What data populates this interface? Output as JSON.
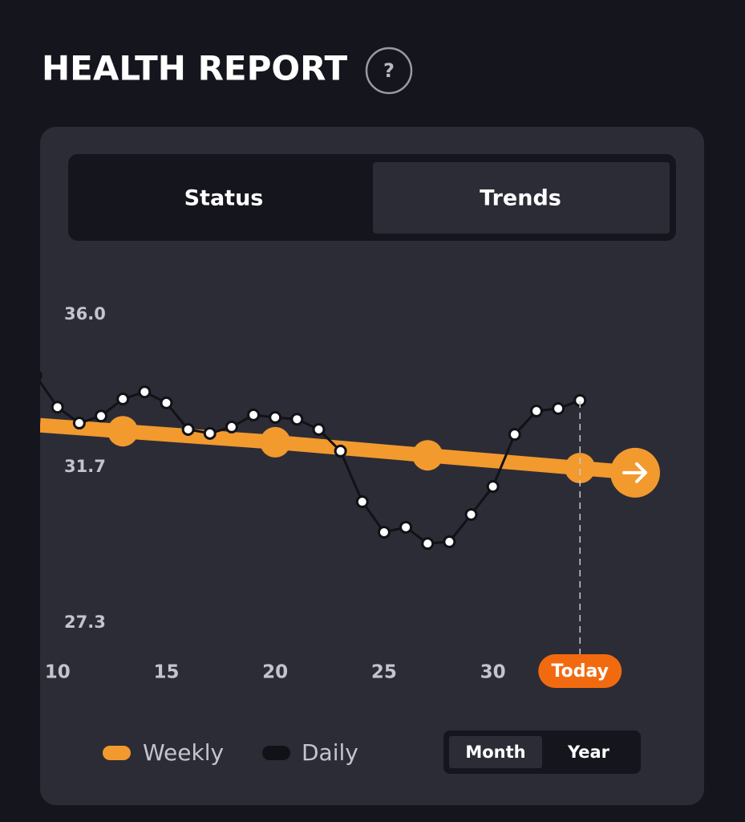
{
  "header": {
    "title": "HEALTH REPORT",
    "help": "?"
  },
  "tabs": {
    "items": [
      "Status",
      "Trends"
    ],
    "active": "Trends"
  },
  "chart_data": {
    "type": "line",
    "xlim": [
      9.2,
      39.7
    ],
    "xticks": [
      10,
      15,
      20,
      25,
      30,
      {
        "value": 34,
        "label": "Today"
      }
    ],
    "ylim": [
      27.3,
      36.0
    ],
    "yticks": [
      27.3,
      31.7,
      {
        "value": 36.0,
        "label": "36.0"
      }
    ],
    "series": [
      {
        "name": "Weekly",
        "color": "#f29a2e",
        "x": [
          13,
          20,
          27,
          34
        ],
        "values": [
          32.71,
          32.4,
          32.03,
          31.67
        ]
      },
      {
        "name": "Daily",
        "color": "#111117",
        "x": [
          9,
          10,
          11,
          12,
          13,
          14,
          15,
          16,
          17,
          18,
          19,
          20,
          21,
          22,
          23,
          24,
          25,
          26,
          27,
          28,
          29,
          30,
          31,
          32,
          33,
          34
        ],
        "values": [
          34.28,
          33.39,
          32.94,
          33.14,
          33.62,
          33.82,
          33.51,
          32.76,
          32.65,
          32.83,
          33.17,
          33.1,
          33.05,
          32.76,
          32.15,
          30.72,
          29.86,
          30.0,
          29.54,
          29.59,
          30.36,
          31.15,
          32.62,
          33.28,
          33.35,
          33.58
        ]
      }
    ]
  },
  "range": {
    "items": [
      "Month",
      "Year"
    ],
    "active": "Month"
  }
}
